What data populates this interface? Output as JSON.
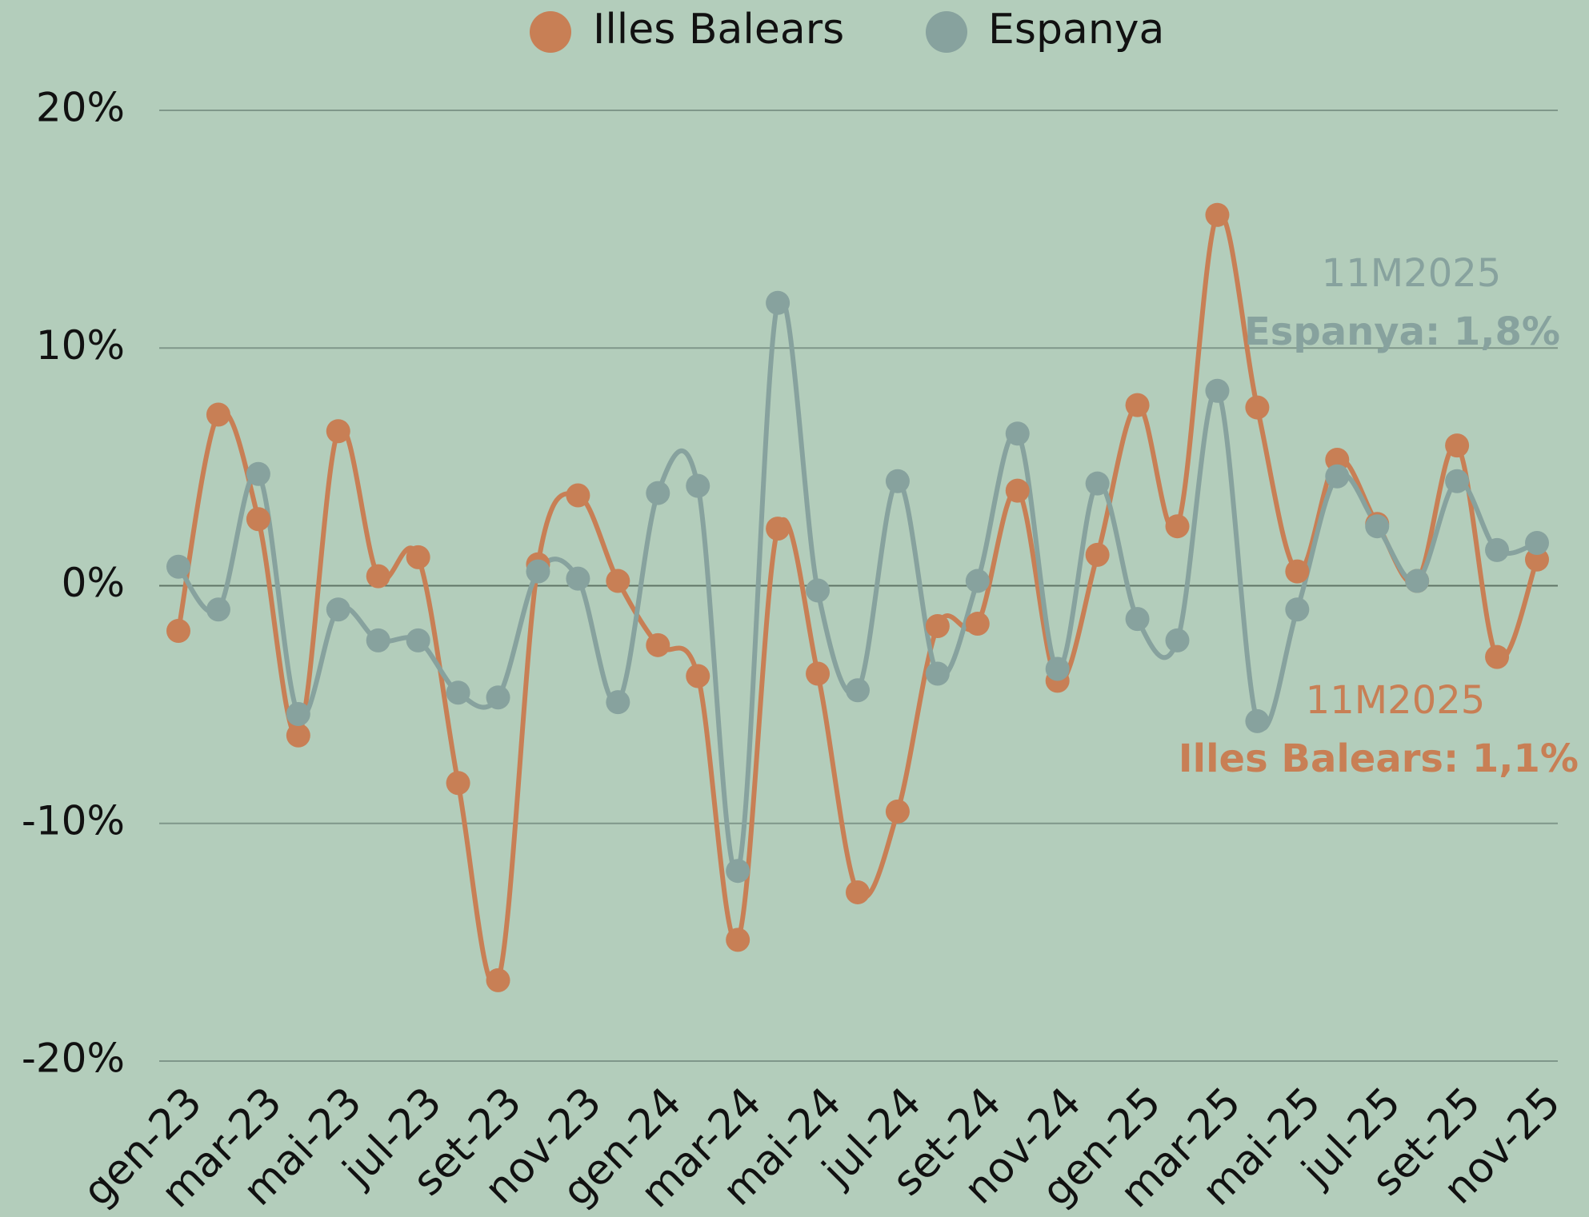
{
  "chart_data": {
    "type": "line",
    "categories": [
      "gen-23",
      null,
      "mar-23",
      null,
      "mai-23",
      null,
      "jul-23",
      null,
      "set-23",
      null,
      "nov-23",
      null,
      "gen-24",
      null,
      "mar-24",
      null,
      "mai-24",
      null,
      "jul-24",
      null,
      "set-24",
      null,
      "nov-24",
      null,
      "gen-25",
      null,
      "mar-25",
      null,
      "mai-25",
      null,
      "jul-25",
      null,
      "set-25",
      null,
      "nov-25"
    ],
    "series": [
      {
        "name": "Illes Balears",
        "color": "#c87f55",
        "values": [
          -1.9,
          7.2,
          2.8,
          -6.3,
          6.5,
          0.4,
          1.2,
          -8.3,
          -16.6,
          0.9,
          3.8,
          0.2,
          -2.5,
          -3.8,
          -14.9,
          2.4,
          -3.7,
          -12.9,
          -9.5,
          -1.7,
          -1.6,
          4.0,
          -4.0,
          1.3,
          7.6,
          2.5,
          15.6,
          7.5,
          0.6,
          5.3,
          2.6,
          0.2,
          5.9,
          -3.0,
          1.1
        ]
      },
      {
        "name": "Espanya",
        "color": "#87a29e",
        "values": [
          0.8,
          -1.0,
          4.7,
          -5.4,
          -1.0,
          -2.3,
          -2.3,
          -4.5,
          -4.7,
          0.6,
          0.3,
          -4.9,
          3.9,
          4.2,
          -12.0,
          11.9,
          -0.2,
          -4.4,
          4.4,
          -3.7,
          0.2,
          6.4,
          -3.5,
          4.3,
          -1.4,
          -2.3,
          8.2,
          -5.7,
          -1.0,
          4.6,
          2.5,
          0.2,
          4.4,
          1.5,
          1.8
        ]
      }
    ],
    "annotations": [
      "11M2025",
      "Espanya: 1,8%",
      "11M2025",
      "Illes Balears: 1,1%"
    ],
    "ylim": [
      -20,
      20
    ],
    "yticks": [
      {
        "value": -20,
        "label": "-20%"
      },
      {
        "value": -10,
        "label": "-10%"
      },
      {
        "value": 0,
        "label": "0%"
      },
      {
        "value": 10,
        "label": "10%"
      },
      {
        "value": 20,
        "label": "20%"
      }
    ],
    "grid": true,
    "legend": "top"
  }
}
